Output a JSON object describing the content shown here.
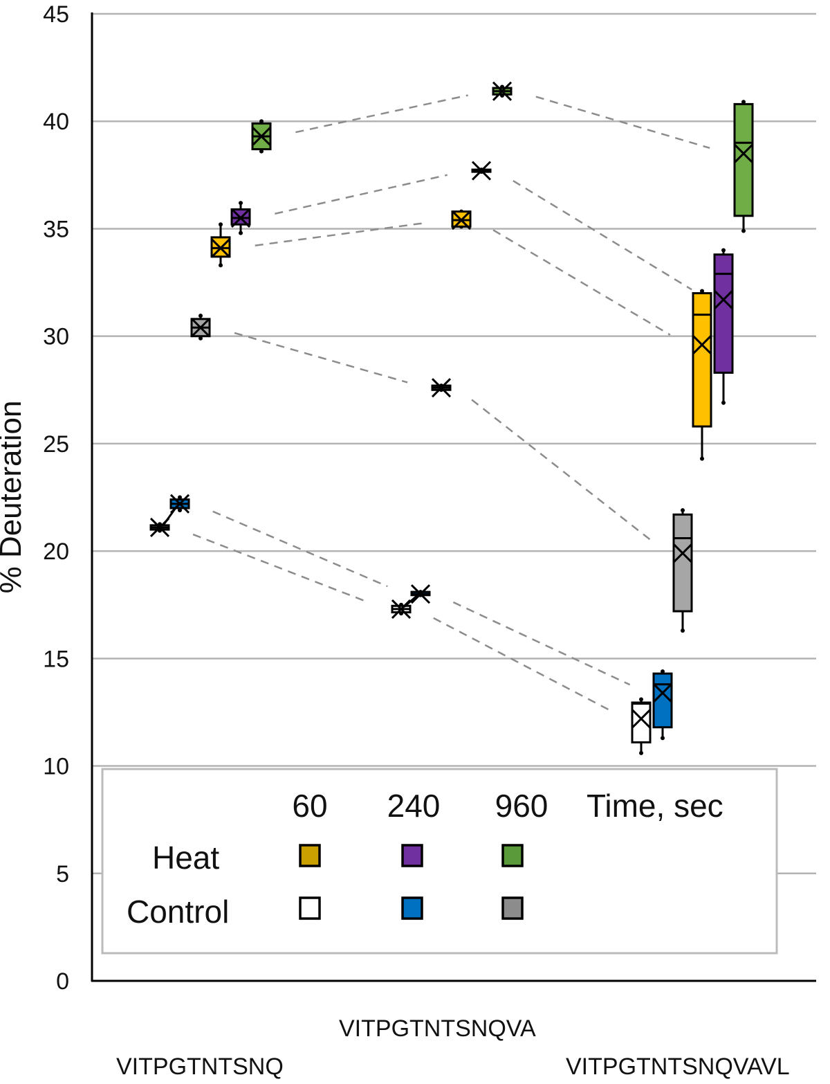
{
  "chart_data": {
    "type": "box",
    "title": "",
    "xlabel": "",
    "ylabel": "% Deuteration",
    "ylim": [
      0,
      45
    ],
    "yticks": [
      0,
      5,
      10,
      15,
      20,
      25,
      30,
      35,
      40,
      45
    ],
    "grid": true,
    "categories": [
      "VITPGTNTSNQ",
      "VITPGTNTSNQVA",
      "VITPGTNTSNQVAVL"
    ],
    "legend": {
      "placement": "bottom-inside",
      "header": [
        "60",
        "240",
        "960",
        "Time, sec"
      ],
      "rows": [
        {
          "label": "Heat",
          "swatches": [
            "#C9A000",
            "#7030A0",
            "#5B9A3A"
          ]
        },
        {
          "label": "Control",
          "swatches": [
            "#FFFFFF",
            "#0070C0",
            "#8C8C8C"
          ]
        }
      ]
    },
    "series": [
      {
        "name": "Control 60",
        "condition": "Control",
        "time_sec": 60,
        "color": "#FFFFFF",
        "boxes": [
          {
            "min": 20.95,
            "q1": 21.0,
            "median": 21.1,
            "q3": 21.2,
            "max": 21.25,
            "mean": 21.1
          },
          {
            "min": 17.1,
            "q1": 17.15,
            "median": 17.3,
            "q3": 17.45,
            "max": 17.5,
            "mean": 17.3
          },
          {
            "min": 10.6,
            "q1": 11.1,
            "median": 12.9,
            "q3": 12.95,
            "max": 13.1,
            "mean": 12.2
          }
        ]
      },
      {
        "name": "Control 240",
        "condition": "Control",
        "time_sec": 240,
        "color": "#0070C0",
        "boxes": [
          {
            "min": 21.9,
            "q1": 22.0,
            "median": 22.2,
            "q3": 22.4,
            "max": 22.5,
            "mean": 22.2
          },
          {
            "min": 17.95,
            "q1": 17.95,
            "median": 18.0,
            "q3": 18.1,
            "max": 18.1,
            "mean": 18.0
          },
          {
            "min": 11.3,
            "q1": 11.8,
            "median": 13.8,
            "q3": 14.3,
            "max": 14.4,
            "mean": 13.4
          }
        ]
      },
      {
        "name": "Control 960",
        "condition": "Control",
        "time_sec": 960,
        "color": "#A6A6A6",
        "boxes": [
          {
            "min": 29.9,
            "q1": 30.0,
            "median": 30.4,
            "q3": 30.8,
            "max": 30.95,
            "mean": 30.4
          },
          {
            "min": 27.5,
            "q1": 27.5,
            "median": 27.6,
            "q3": 27.7,
            "max": 27.7,
            "mean": 27.6
          },
          {
            "min": 16.3,
            "q1": 17.2,
            "median": 20.6,
            "q3": 21.7,
            "max": 21.9,
            "mean": 19.9
          }
        ]
      },
      {
        "name": "Heat 60",
        "condition": "Heat",
        "time_sec": 60,
        "color": "#FFC000",
        "boxes": [
          {
            "min": 33.3,
            "q1": 33.7,
            "median": 34.1,
            "q3": 34.6,
            "max": 35.2,
            "mean": 34.1
          },
          {
            "min": 35.1,
            "q1": 35.1,
            "median": 35.4,
            "q3": 35.8,
            "max": 35.8,
            "mean": 35.4
          },
          {
            "min": 24.3,
            "q1": 25.8,
            "median": 31.0,
            "q3": 32.0,
            "max": 32.1,
            "mean": 29.6
          }
        ]
      },
      {
        "name": "Heat 240",
        "condition": "Heat",
        "time_sec": 240,
        "color": "#7030A0",
        "boxes": [
          {
            "min": 34.8,
            "q1": 35.2,
            "median": 35.5,
            "q3": 35.9,
            "max": 36.2,
            "mean": 35.5
          },
          {
            "min": 37.65,
            "q1": 37.65,
            "median": 37.7,
            "q3": 37.75,
            "max": 37.75,
            "mean": 37.7
          },
          {
            "min": 26.9,
            "q1": 28.3,
            "median": 32.9,
            "q3": 33.8,
            "max": 34.0,
            "mean": 31.7
          }
        ]
      },
      {
        "name": "Heat 960",
        "condition": "Heat",
        "time_sec": 960,
        "color": "#70AD47",
        "boxes": [
          {
            "min": 38.6,
            "q1": 38.7,
            "median": 39.3,
            "q3": 39.9,
            "max": 40.0,
            "mean": 39.3
          },
          {
            "min": 41.2,
            "q1": 41.25,
            "median": 41.4,
            "q3": 41.55,
            "max": 41.6,
            "mean": 41.4
          },
          {
            "min": 34.9,
            "q1": 35.6,
            "median": 39.0,
            "q3": 40.8,
            "max": 40.9,
            "mean": 38.5
          }
        ]
      }
    ],
    "annotations": "Gray dashed lines connect the same series across the three peptides"
  }
}
